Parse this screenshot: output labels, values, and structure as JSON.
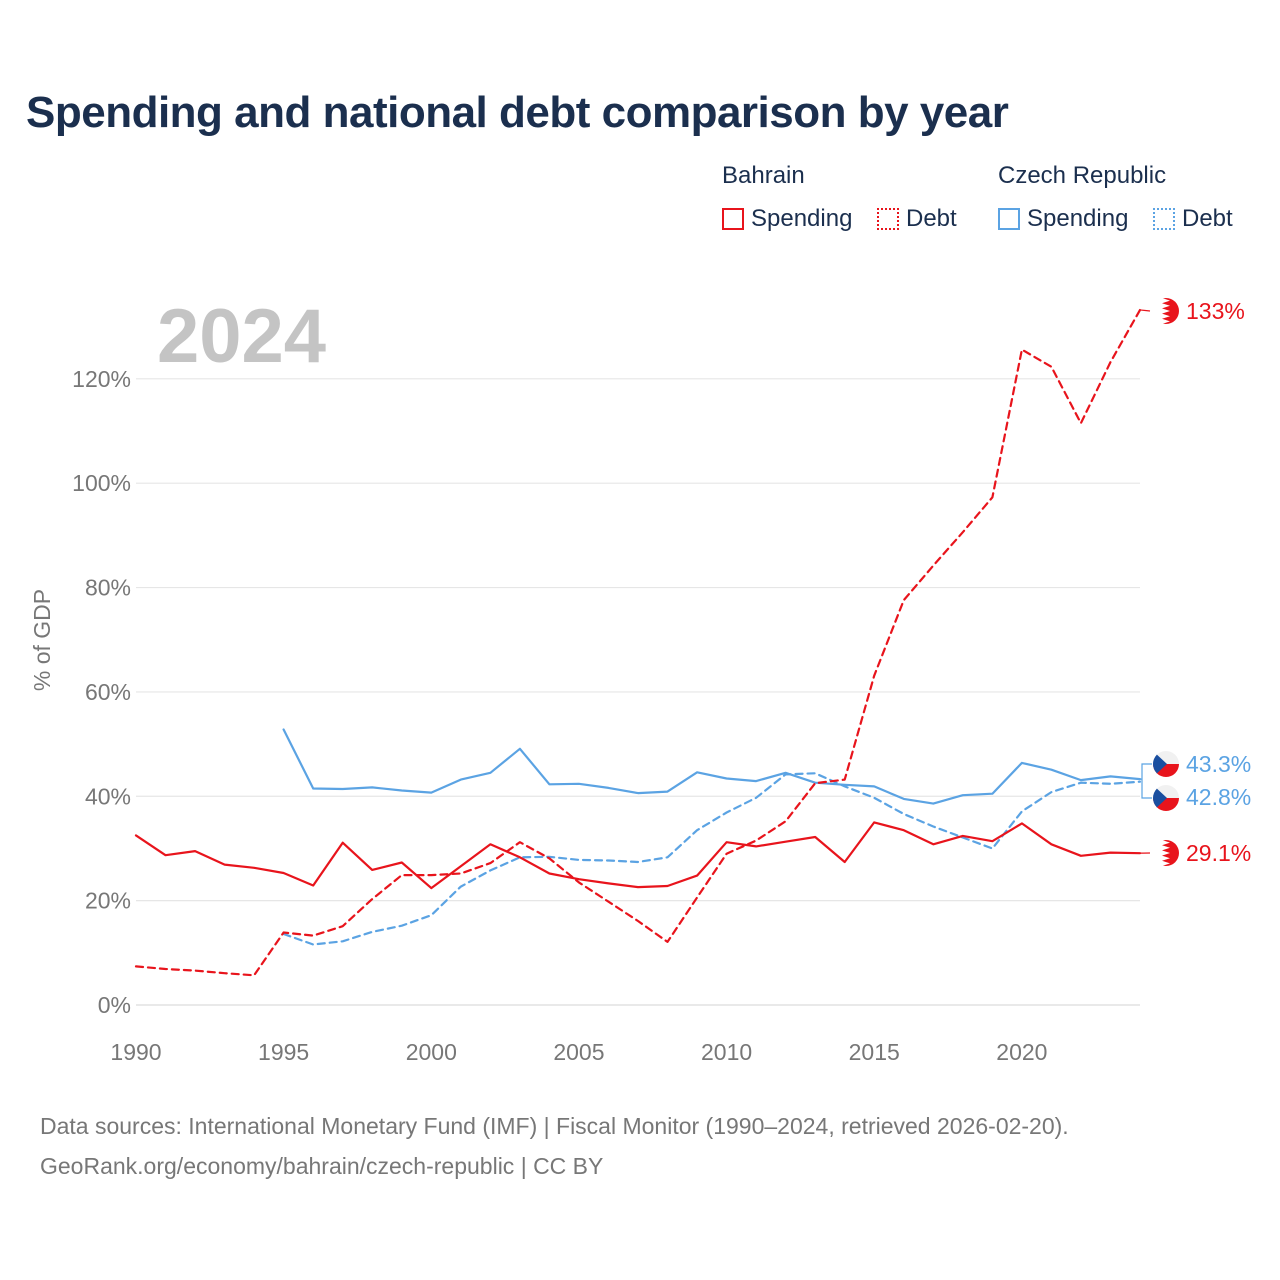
{
  "title": "Spending and national debt comparison by year",
  "legend": {
    "groups": [
      {
        "name": "Bahrain",
        "items": [
          "Spending",
          "Debt"
        ]
      },
      {
        "name": "Czech Republic",
        "items": [
          "Spending",
          "Debt"
        ]
      }
    ]
  },
  "year_label": "2024",
  "sources": {
    "line1": "Data sources: International Monetary Fund (IMF) | Fiscal Monitor (1990–2024, retrieved 2026-02-20).",
    "line2": "GeoRank.org/economy/bahrain/czech-republic | CC BY"
  },
  "colors": {
    "bahrain": "#e8141c",
    "czech": "#5ba3e3",
    "title": "#1b2f4e",
    "axis_text": "#777777",
    "grid": "#e6e6e6",
    "year": "#c4c4c4"
  },
  "chart_data": {
    "type": "line",
    "ylabel": "% of GDP",
    "xlim": [
      1990,
      2024
    ],
    "ylim": [
      0,
      133
    ],
    "y_ticks": [
      0,
      20,
      40,
      60,
      80,
      100,
      120
    ],
    "y_tick_labels": [
      "0%",
      "20%",
      "40%",
      "60%",
      "80%",
      "100%",
      "120%"
    ],
    "x_ticks": [
      1990,
      1995,
      2000,
      2005,
      2010,
      2015,
      2020
    ],
    "x_tick_labels": [
      "1990",
      "1995",
      "2000",
      "2005",
      "2010",
      "2015",
      "2020"
    ],
    "series": [
      {
        "name": "Bahrain Spending",
        "country": "bahrain",
        "dash": false,
        "start": 1990,
        "values": [
          32.5,
          28.7,
          29.5,
          26.9,
          26.3,
          25.3,
          22.9,
          31.1,
          25.9,
          27.3,
          22.4,
          26.6,
          30.8,
          28.3,
          25.2,
          24.1,
          23.3,
          22.6,
          22.8,
          24.8,
          31.2,
          30.4,
          31.3,
          32.2,
          27.4,
          35.0,
          33.5,
          30.8,
          32.4,
          31.4,
          34.8,
          30.8,
          28.6,
          29.2,
          29.1
        ],
        "end_label": "29.1%"
      },
      {
        "name": "Bahrain Debt",
        "country": "bahrain",
        "dash": true,
        "start": 1990,
        "values": [
          7.4,
          6.9,
          6.6,
          6.1,
          5.7,
          13.9,
          13.3,
          15.1,
          20.3,
          24.9,
          24.9,
          25.2,
          27.2,
          31.2,
          28.1,
          23.5,
          19.8,
          16.1,
          12.1,
          20.6,
          29.0,
          31.5,
          35.2,
          42.5,
          43.2,
          63.1,
          77.6,
          84.2,
          90.6,
          97.3,
          125.6,
          122.3,
          111.5,
          123.2,
          133.2
        ],
        "end_label": "133%"
      },
      {
        "name": "Czech Republic Spending",
        "country": "czech",
        "dash": false,
        "start": 1995,
        "values": [
          52.8,
          41.5,
          41.4,
          41.7,
          41.1,
          40.7,
          43.2,
          44.5,
          49.1,
          42.3,
          42.4,
          41.6,
          40.6,
          40.9,
          44.6,
          43.4,
          42.9,
          44.5,
          42.6,
          42.2,
          41.9,
          39.5,
          38.6,
          40.2,
          40.5,
          46.4,
          45.1,
          43.1,
          43.8,
          43.3
        ],
        "end_label": "43.3%"
      },
      {
        "name": "Czech Republic Debt",
        "country": "czech",
        "dash": true,
        "start": 1995,
        "values": [
          13.6,
          11.6,
          12.2,
          14.0,
          15.2,
          17.2,
          22.7,
          25.8,
          28.3,
          28.4,
          27.8,
          27.7,
          27.4,
          28.3,
          33.5,
          36.9,
          39.7,
          44.2,
          44.4,
          41.9,
          39.7,
          36.6,
          34.2,
          32.1,
          30.0,
          37.1,
          40.8,
          42.6,
          42.4,
          42.8
        ],
        "end_label": "42.8%"
      }
    ]
  }
}
